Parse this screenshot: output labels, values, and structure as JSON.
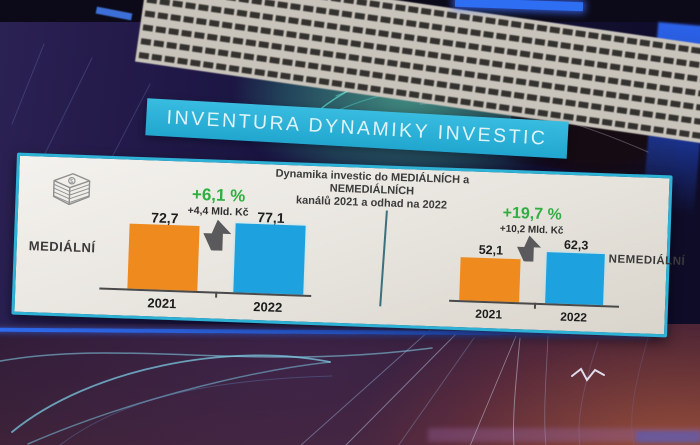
{
  "banner": {
    "title": "INVENTURA DYNAMIKY INVESTIC"
  },
  "slide": {
    "subtitle_line1": "Dynamika investic do MEDIÁLNÍCH a NEMEDIÁLNÍCH",
    "subtitle_line2": "kanálů 2021 a odhad na 2022",
    "icons": {
      "money": "banknote-stack-icon",
      "growth": "block-arrow-up-icon"
    }
  },
  "chart_data": {
    "type": "bar",
    "title": "Dynamika investic do MEDIÁLNÍCH a NEMEDIÁLNÍCH kanálů 2021 a odhad na 2022",
    "unit": "Mld. Kč",
    "categories": [
      "2021",
      "2022"
    ],
    "groups": [
      {
        "label": "MEDIÁLNÍ",
        "values": [
          72.7,
          77.1
        ],
        "value_labels": [
          "72,7",
          "77,1"
        ],
        "change_pct": "+6,1 %",
        "change_abs": "+4,4 Mld. Kč"
      },
      {
        "label": "NEMEDIÁLNÍ",
        "values": [
          52.1,
          62.3
        ],
        "value_labels": [
          "52,1",
          "62,3"
        ],
        "change_pct": "+19,7 %",
        "change_abs": "+10,2 Mld. Kč"
      }
    ],
    "colors": {
      "bar_2021": "#ef8b1e",
      "bar_2022": "#1ea2df",
      "change_text": "#2fae41",
      "banner": "#2bb0d5"
    },
    "legend": "none",
    "grid": false
  }
}
